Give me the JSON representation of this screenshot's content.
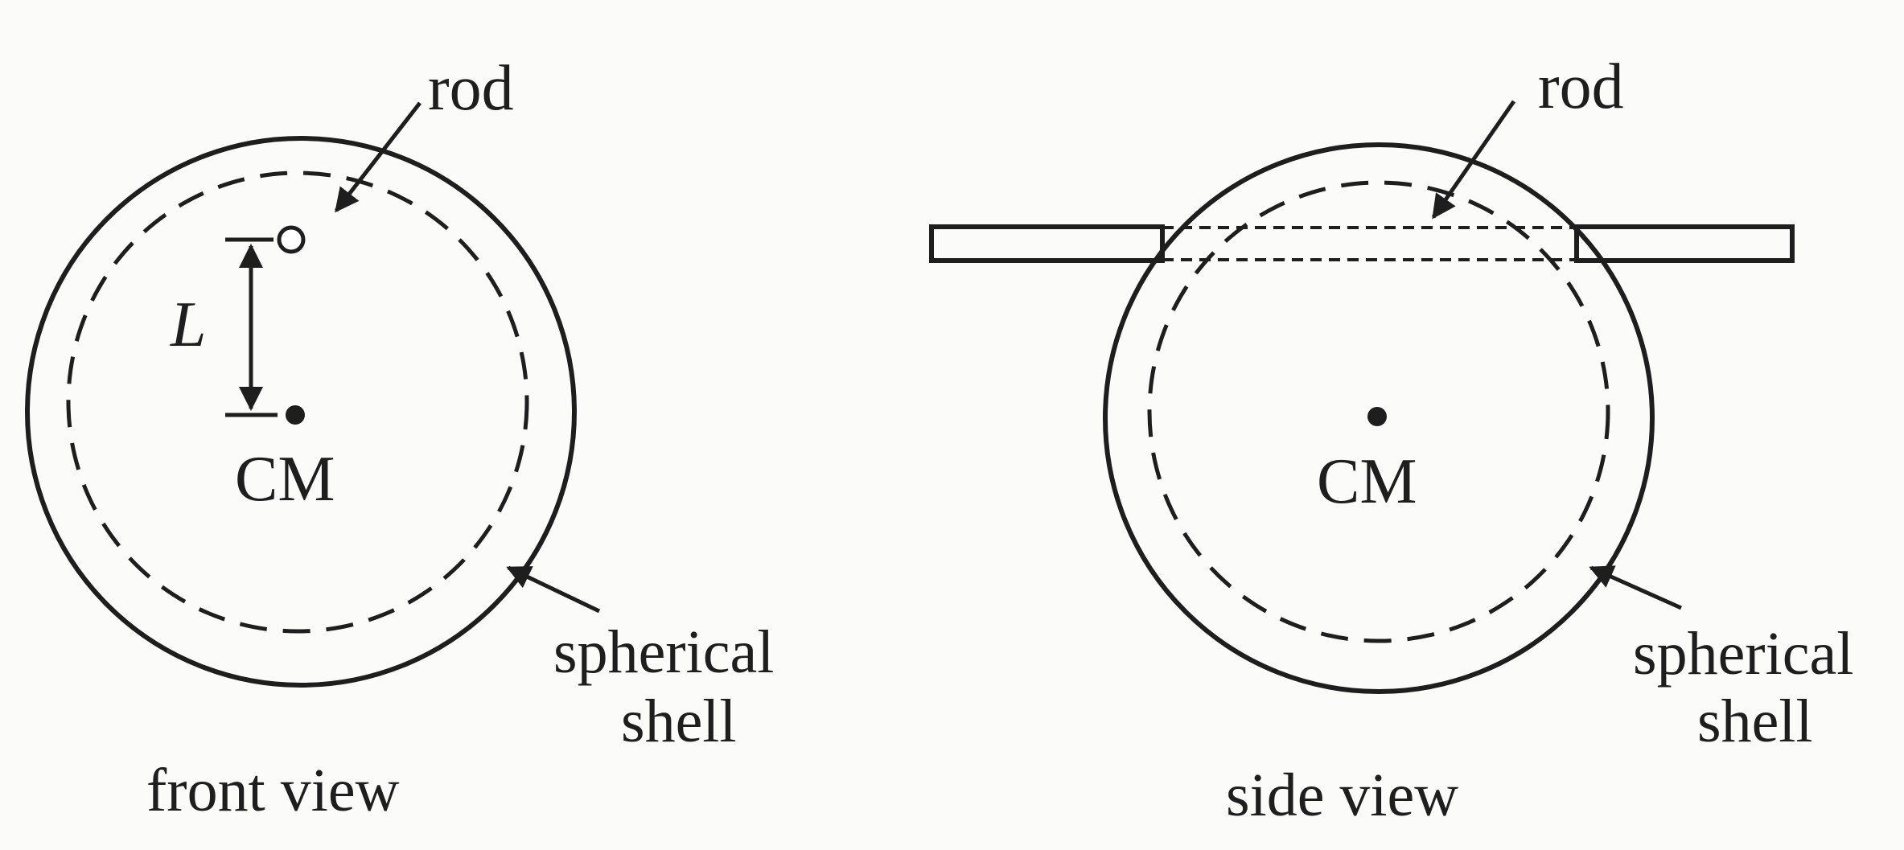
{
  "front_view": {
    "caption": "front view",
    "rod_label": "rod",
    "distance_label": "L",
    "cm_label": "CM",
    "shell_label_line1": "spherical",
    "shell_label_line2": "shell"
  },
  "side_view": {
    "caption": "side view",
    "rod_label": "rod",
    "cm_label": "CM",
    "shell_label_line1": "spherical",
    "shell_label_line2": "shell"
  },
  "colors": {
    "ink": "#1e1e1e",
    "paper": "#fbfbfa"
  }
}
